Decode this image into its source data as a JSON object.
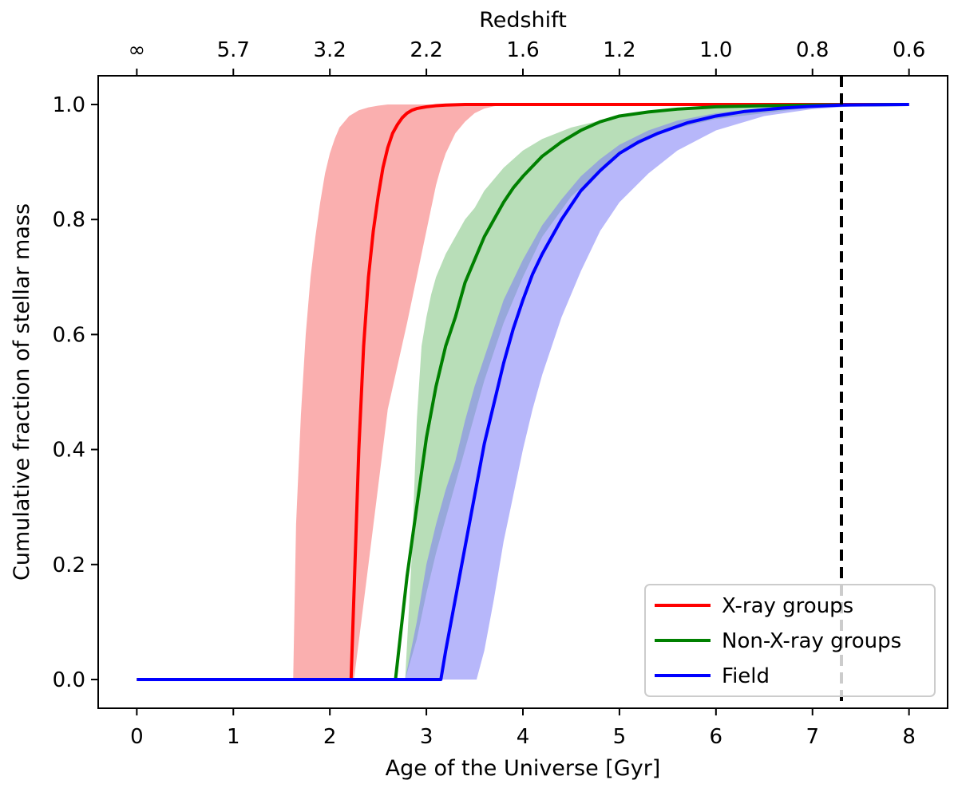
{
  "chart_data": {
    "type": "line",
    "xlabel": "Age of the Universe [Gyr]",
    "ylabel": "Cumulative fraction of stellar mass",
    "top_xlabel": "Redshift",
    "xlim": [
      -0.4,
      8.4
    ],
    "ylim": [
      -0.05,
      1.05
    ],
    "x_ticks": [
      0,
      1,
      2,
      3,
      4,
      5,
      6,
      7,
      8
    ],
    "x_tick_labels": [
      "0",
      "1",
      "2",
      "3",
      "4",
      "5",
      "6",
      "7",
      "8"
    ],
    "y_ticks": [
      0.0,
      0.2,
      0.4,
      0.6,
      0.8,
      1.0
    ],
    "y_tick_labels": [
      "0.0",
      "0.2",
      "0.4",
      "0.6",
      "0.8",
      "1.0"
    ],
    "top_ticks": [
      0,
      1,
      2,
      3,
      4,
      5,
      6,
      7,
      8
    ],
    "top_tick_labels": [
      "∞",
      "5.7",
      "3.2",
      "2.2",
      "1.6",
      "1.2",
      "1.0",
      "0.8",
      "0.6"
    ],
    "vline": {
      "x": 7.3,
      "style": "dashed",
      "color": "#000000"
    },
    "legend": {
      "position": "lower-right",
      "entries": [
        "X-ray groups",
        "Non-X-ray groups",
        "Field"
      ]
    },
    "series": [
      {
        "name": "X-ray groups",
        "color": "#ff0000",
        "band_color": "#f66d6d",
        "x": [
          0,
          2.22,
          2.25,
          2.3,
          2.35,
          2.4,
          2.45,
          2.5,
          2.55,
          2.6,
          2.65,
          2.7,
          2.75,
          2.8,
          2.85,
          2.9,
          3.0,
          3.1,
          3.2,
          3.4,
          3.6,
          8.0
        ],
        "y": [
          0,
          0,
          0.15,
          0.4,
          0.58,
          0.7,
          0.78,
          0.84,
          0.89,
          0.925,
          0.95,
          0.965,
          0.977,
          0.985,
          0.99,
          0.993,
          0.996,
          0.998,
          0.999,
          1.0,
          1.0,
          1.0
        ],
        "band_x": [
          1.62,
          1.65,
          1.7,
          1.75,
          1.8,
          1.85,
          1.9,
          1.95,
          2.0,
          2.05,
          2.1,
          2.2,
          2.3,
          2.4,
          2.5,
          2.6,
          2.8,
          3.0,
          3.3,
          8.0
        ],
        "band_upper": [
          0,
          0.27,
          0.46,
          0.6,
          0.7,
          0.77,
          0.83,
          0.88,
          0.915,
          0.94,
          0.96,
          0.98,
          0.99,
          0.995,
          0.998,
          1.0,
          1.0,
          1.0,
          1.0,
          1.0
        ],
        "band_lower_x": [
          2.25,
          2.4,
          2.6,
          2.8,
          2.9,
          2.95,
          3.0,
          3.05,
          3.1,
          3.15,
          3.2,
          3.3,
          3.4,
          3.5,
          3.6,
          3.7,
          3.8,
          4.0,
          8.0
        ],
        "band_lower": [
          0,
          0.2,
          0.47,
          0.62,
          0.7,
          0.74,
          0.78,
          0.82,
          0.86,
          0.89,
          0.915,
          0.95,
          0.97,
          0.985,
          0.993,
          0.997,
          0.999,
          1.0,
          1.0
        ]
      },
      {
        "name": "Non-X-ray groups",
        "color": "#008000",
        "band_color": "#7ec27e",
        "x": [
          0,
          2.68,
          2.8,
          2.9,
          3.0,
          3.1,
          3.2,
          3.3,
          3.4,
          3.5,
          3.6,
          3.7,
          3.8,
          3.9,
          4.0,
          4.2,
          4.4,
          4.6,
          4.8,
          5.0,
          5.3,
          5.6,
          6.0,
          6.5,
          7.0,
          8.0
        ],
        "y": [
          0,
          0,
          0.18,
          0.3,
          0.42,
          0.51,
          0.58,
          0.63,
          0.69,
          0.73,
          0.77,
          0.8,
          0.83,
          0.855,
          0.875,
          0.91,
          0.935,
          0.955,
          0.97,
          0.98,
          0.987,
          0.992,
          0.996,
          0.998,
          0.999,
          1.0
        ],
        "band_x": [
          2.78,
          2.85,
          2.9,
          2.95,
          3.0,
          3.05,
          3.1,
          3.2,
          3.3,
          3.4,
          3.5,
          3.6,
          3.8,
          4.0,
          4.2,
          4.5,
          5.0,
          5.5,
          6.0,
          7.0,
          8.0
        ],
        "band_upper": [
          0,
          0.22,
          0.45,
          0.58,
          0.63,
          0.67,
          0.7,
          0.74,
          0.77,
          0.8,
          0.82,
          0.85,
          0.89,
          0.92,
          0.94,
          0.96,
          0.98,
          0.99,
          0.995,
          0.999,
          1.0
        ],
        "band_lower_x": [
          2.78,
          2.9,
          3.0,
          3.1,
          3.2,
          3.3,
          3.4,
          3.5,
          3.6,
          3.7,
          3.8,
          4.0,
          4.2,
          4.5,
          5.0,
          5.5,
          6.0,
          7.0,
          8.0
        ],
        "band_lower": [
          0,
          0.07,
          0.15,
          0.22,
          0.28,
          0.34,
          0.4,
          0.46,
          0.52,
          0.57,
          0.62,
          0.7,
          0.77,
          0.84,
          0.915,
          0.955,
          0.975,
          0.995,
          1.0
        ]
      },
      {
        "name": "Field",
        "color": "#0000ff",
        "band_color": "#7b7bf5",
        "x": [
          0,
          3.15,
          3.2,
          3.3,
          3.4,
          3.5,
          3.6,
          3.7,
          3.8,
          3.9,
          4.0,
          4.1,
          4.2,
          4.4,
          4.6,
          4.8,
          5.0,
          5.2,
          5.4,
          5.7,
          6.0,
          6.3,
          6.7,
          7.0,
          7.3,
          8.0
        ],
        "y": [
          0,
          0,
          0.05,
          0.14,
          0.23,
          0.32,
          0.41,
          0.48,
          0.55,
          0.61,
          0.66,
          0.705,
          0.74,
          0.8,
          0.85,
          0.885,
          0.915,
          0.935,
          0.95,
          0.968,
          0.98,
          0.988,
          0.994,
          0.997,
          0.999,
          1.0
        ],
        "band_x": [
          2.78,
          2.9,
          3.0,
          3.1,
          3.2,
          3.3,
          3.4,
          3.5,
          3.6,
          3.7,
          3.8,
          4.0,
          4.2,
          4.4,
          4.6,
          4.8,
          5.0,
          5.3,
          5.6,
          6.0,
          6.5,
          7.0,
          8.0
        ],
        "band_upper": [
          0,
          0.1,
          0.2,
          0.27,
          0.33,
          0.38,
          0.45,
          0.51,
          0.56,
          0.61,
          0.66,
          0.73,
          0.79,
          0.835,
          0.875,
          0.905,
          0.93,
          0.955,
          0.972,
          0.985,
          0.994,
          0.998,
          1.0
        ],
        "band_lower_x": [
          3.52,
          3.6,
          3.7,
          3.8,
          3.9,
          4.0,
          4.1,
          4.2,
          4.4,
          4.6,
          4.8,
          5.0,
          5.3,
          5.6,
          6.0,
          6.5,
          7.0,
          7.5,
          8.0
        ],
        "band_lower": [
          0,
          0.05,
          0.14,
          0.24,
          0.32,
          0.4,
          0.47,
          0.53,
          0.63,
          0.71,
          0.78,
          0.83,
          0.88,
          0.92,
          0.955,
          0.98,
          0.992,
          0.998,
          1.0
        ]
      }
    ]
  }
}
